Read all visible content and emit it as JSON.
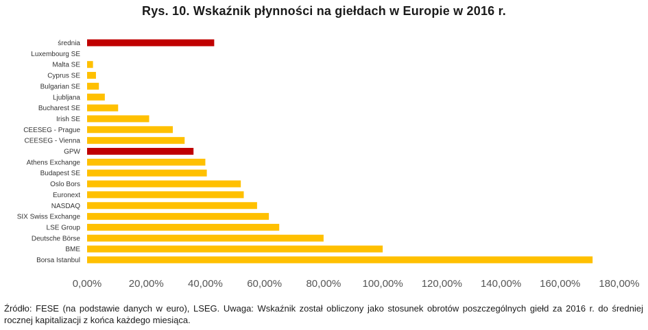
{
  "title": "Rys. 10. Wskaźnik płynności na giełdach w Europie w 2016 r.",
  "source_note": "Źródło: FESE (na podstawie danych w euro), LSEG. Uwaga: Wskaźnik został obliczony jako stosunek obrotów poszczególnych giełd za 2016 r. do średniej rocznej kapitalizacji z końca każdego miesiąca.",
  "colors": {
    "default": "#FFC000",
    "highlight": "#C00000"
  },
  "chart_data": {
    "type": "bar",
    "orientation": "horizontal",
    "title": "Rys. 10. Wskaźnik płynności na giełdach w Europie w 2016 r.",
    "xlabel": "",
    "ylabel": "",
    "xlim": [
      0,
      180
    ],
    "x_ticks": [
      "0,00%",
      "20,00%",
      "40,00%",
      "60,00%",
      "80,00%",
      "100,00%",
      "120,00%",
      "140,00%",
      "160,00%",
      "180,00%"
    ],
    "unit": "%",
    "grid": false,
    "categories": [
      "średnia",
      "Luxembourg SE",
      "Malta SE",
      "Cyprus SE",
      "Bulgarian SE",
      "Ljubljana",
      "Bucharest SE",
      "Irish SE",
      "CEESEG - Prague",
      "CEESEG - Vienna",
      "GPW",
      "Athens Exchange",
      "Budapest SE",
      "Oslo Bors",
      "Euronext",
      "NASDAQ",
      "SIX Swiss Exchange",
      "LSE Group",
      "Deutsche Börse",
      "BME",
      "Borsa Istanbul"
    ],
    "values": [
      43.0,
      0.0,
      2.0,
      3.0,
      4.0,
      6.0,
      10.5,
      21.0,
      29.0,
      33.0,
      36.0,
      40.0,
      40.5,
      52.0,
      53.0,
      57.5,
      61.5,
      65.0,
      80.0,
      100.0,
      171.0
    ],
    "highlighted": [
      "średnia",
      "GPW"
    ]
  }
}
